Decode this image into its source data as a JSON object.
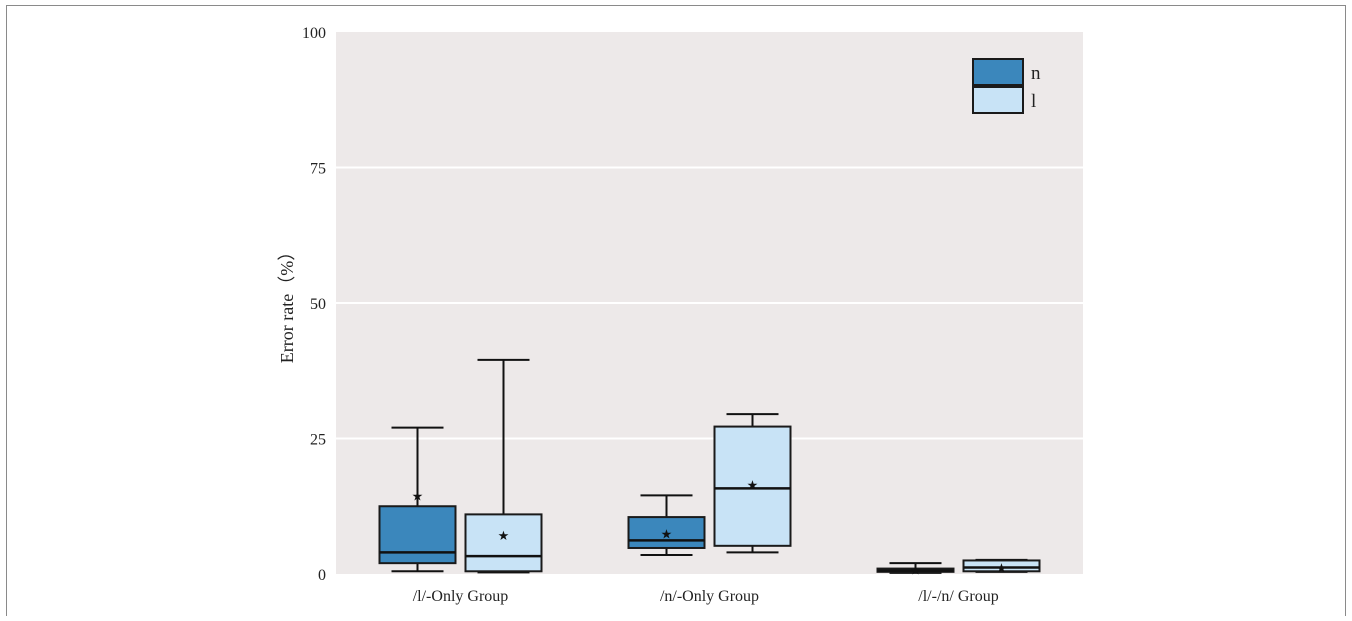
{
  "chart_data": {
    "type": "box",
    "title": "",
    "xlabel": "",
    "ylabel": "Error rate（%）",
    "ylim": [
      0,
      100
    ],
    "yticks": [
      0,
      25,
      50,
      75,
      100
    ],
    "grid": true,
    "legend_position": "top-right",
    "categories": [
      "/l/-Only Group",
      "/n/-Only Group",
      "/l/-/n/ Group"
    ],
    "series": [
      {
        "name": "n",
        "color": "#3b87bc",
        "boxes": [
          {
            "min": 0.5,
            "q1": 2.0,
            "median": 4.0,
            "q3": 12.5,
            "max": 27.0,
            "mean": 14.5
          },
          {
            "min": 3.5,
            "q1": 4.8,
            "median": 6.2,
            "q3": 10.5,
            "max": 14.5,
            "mean": 7.5
          },
          {
            "min": 0.2,
            "q1": 0.4,
            "median": 0.6,
            "q3": 1.0,
            "max": 2.0,
            "mean": 0.8
          }
        ]
      },
      {
        "name": "l",
        "color": "#c8e3f6",
        "boxes": [
          {
            "min": 0.3,
            "q1": 0.5,
            "median": 3.3,
            "q3": 11.0,
            "max": 39.5,
            "mean": 7.2
          },
          {
            "min": 4.0,
            "q1": 5.2,
            "median": 15.8,
            "q3": 27.2,
            "max": 29.5,
            "mean": 16.5
          },
          {
            "min": 0.4,
            "q1": 0.5,
            "median": 1.2,
            "q3": 2.5,
            "max": 2.6,
            "mean": 1.2
          }
        ]
      }
    ]
  }
}
